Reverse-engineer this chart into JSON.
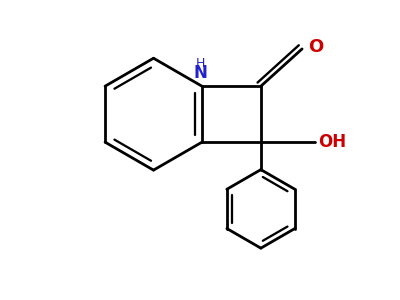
{
  "background_color": "#ffffff",
  "bond_color": "#000000",
  "N_color": "#2222cc",
  "O_color": "#cc0000",
  "line_width": 2.0,
  "figsize": [
    4.0,
    3.0
  ],
  "dpi": 100,
  "xlim": [
    0,
    4
  ],
  "ylim": [
    0,
    3
  ]
}
